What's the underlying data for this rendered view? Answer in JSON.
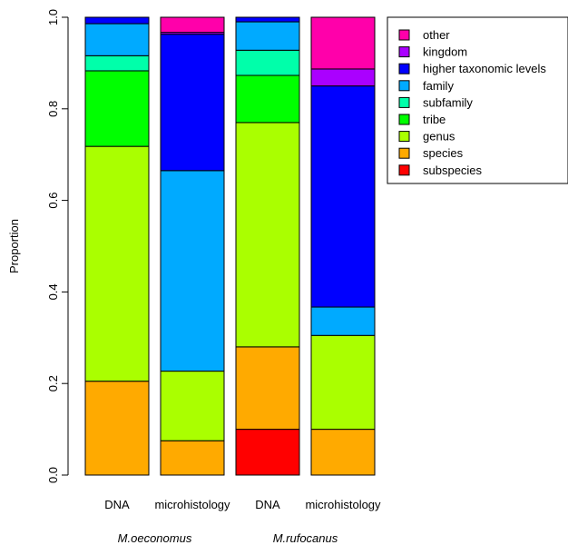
{
  "chart_data": {
    "type": "bar",
    "stacked": true,
    "title": "",
    "xlabel": "",
    "ylabel": "Proportion",
    "ylim": [
      0,
      1
    ],
    "yticks": [
      "0.0",
      "0.2",
      "0.4",
      "0.6",
      "0.8",
      "1.0"
    ],
    "grid": false,
    "legend_position": "top-right",
    "categories": [
      "DNA",
      "microhistology",
      "DNA",
      "microhistology"
    ],
    "groups": [
      {
        "label": "M.oeconomus",
        "categories": [
          0,
          1
        ]
      },
      {
        "label": "M.rufocanus",
        "categories": [
          2,
          3
        ]
      }
    ],
    "series": [
      {
        "name": "subspecies",
        "color": "#FF0000",
        "values": [
          0.0,
          0.0,
          0.1,
          0.0
        ]
      },
      {
        "name": "species",
        "color": "#FFAA00",
        "values": [
          0.205,
          0.075,
          0.18,
          0.1
        ]
      },
      {
        "name": "genus",
        "color": "#AAFF00",
        "values": [
          0.513,
          0.152,
          0.49,
          0.205
        ]
      },
      {
        "name": "tribe",
        "color": "#00FF00",
        "values": [
          0.165,
          0.0,
          0.103,
          0.0
        ]
      },
      {
        "name": "subfamily",
        "color": "#00FFAA",
        "values": [
          0.033,
          0.0,
          0.055,
          0.0
        ]
      },
      {
        "name": "family",
        "color": "#00AAFF",
        "values": [
          0.07,
          0.438,
          0.062,
          0.062
        ]
      },
      {
        "name": "higher taxonomic levels",
        "color": "#0000FF",
        "values": [
          0.014,
          0.298,
          0.01,
          0.483
        ]
      },
      {
        "name": "kingdom",
        "color": "#AA00FF",
        "values": [
          0.0,
          0.004,
          0.0,
          0.037
        ]
      },
      {
        "name": "other",
        "color": "#FF00AA",
        "values": [
          0.0,
          0.033,
          0.0,
          0.113
        ]
      }
    ],
    "legend_order": [
      "other",
      "kingdom",
      "higher taxonomic levels",
      "family",
      "subfamily",
      "tribe",
      "genus",
      "species",
      "subspecies"
    ]
  }
}
